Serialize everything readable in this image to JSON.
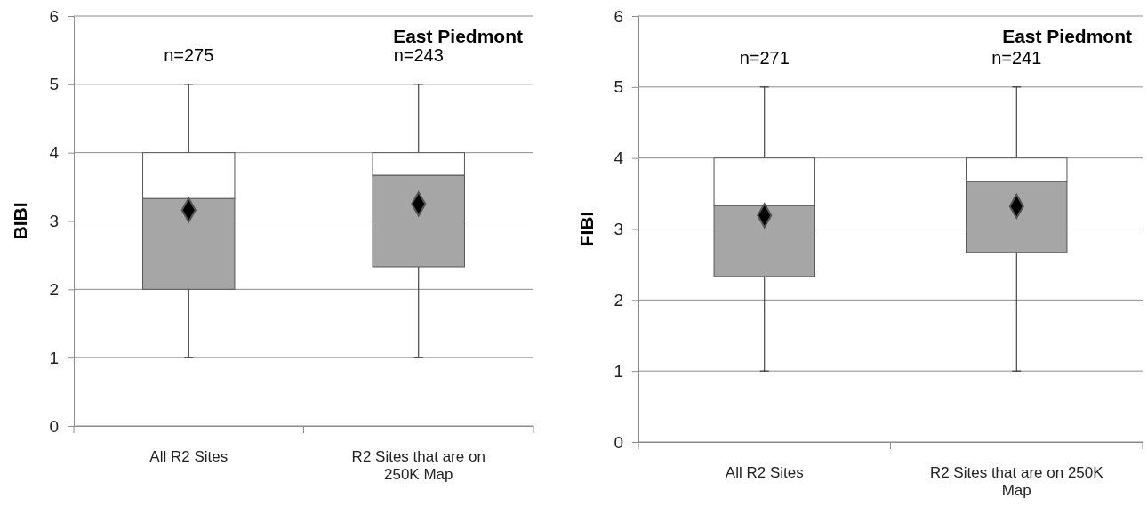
{
  "chart_data": [
    {
      "type": "box",
      "title": "East Piedmont",
      "ylabel": "BIBI",
      "categories": [
        "All R2 Sites",
        "R2 Sites that are on 250K Map"
      ],
      "boxes": [
        {
          "low": 1,
          "q1": 2,
          "median": 3.33,
          "q3": 4,
          "high": 5,
          "mean": 3.16
        },
        {
          "low": 1,
          "q1": 2.33,
          "median": 3.67,
          "q3": 4,
          "high": 5,
          "mean": 3.25
        }
      ],
      "ylim": [
        0,
        6
      ],
      "yticks": [
        0,
        1,
        2,
        3,
        4,
        5,
        6
      ],
      "grid": "y",
      "marker": "diamond",
      "annotations": [
        "n=275",
        "n=243"
      ]
    },
    {
      "type": "box",
      "title": "East Piedmont",
      "ylabel": "FIBI",
      "categories": [
        "All R2 Sites",
        "R2 Sites that are on 250K Map"
      ],
      "boxes": [
        {
          "low": 1,
          "q1": 2.33,
          "median": 3.33,
          "q3": 4,
          "high": 5,
          "mean": 3.19
        },
        {
          "low": 1,
          "q1": 2.67,
          "median": 3.67,
          "q3": 4,
          "high": 5,
          "mean": 3.32
        }
      ],
      "ylim": [
        0,
        6
      ],
      "yticks": [
        0,
        1,
        2,
        3,
        4,
        5,
        6
      ],
      "grid": "y",
      "marker": "diamond",
      "annotations": [
        "n=271",
        "n=241"
      ]
    }
  ]
}
